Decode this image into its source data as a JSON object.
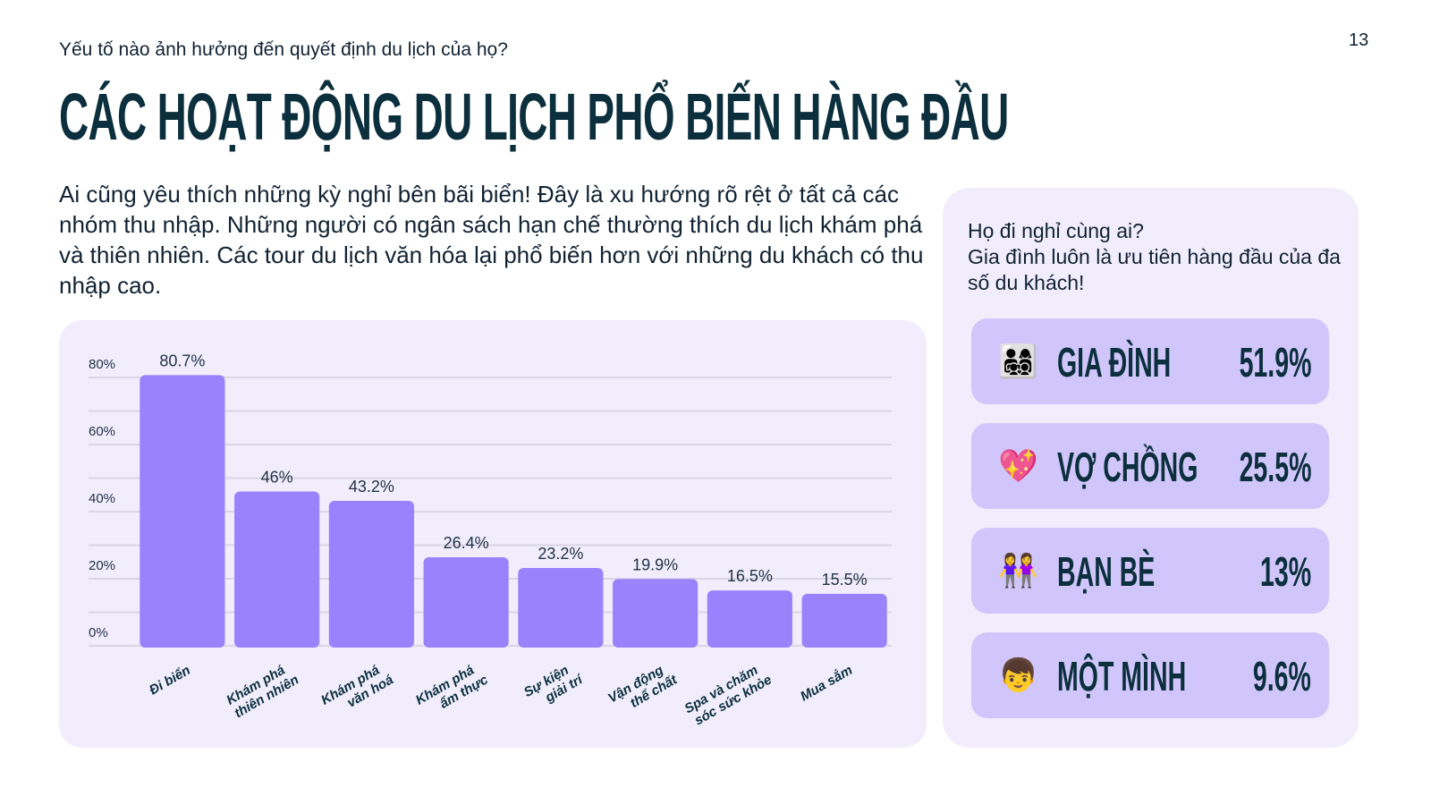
{
  "page_number": "13",
  "kicker": "Yếu tố nào ảnh hưởng đến quyết định du lịch của họ?",
  "title": "CÁC HOẠT ĐỘNG DU LỊCH PHỔ BIẾN HÀNG ĐẦU",
  "intro": "Ai cũng yêu thích những kỳ nghỉ bên bãi biển! Đây là xu hướng rõ rệt ở tất cả các nhóm thu nhập. Những người có ngân sách hạn chế thường thích du lịch khám phá và thiên nhiên. Các tour du lịch văn hóa lại phổ biến hơn với những du khách có thu nhập cao.",
  "chart_data": {
    "type": "bar",
    "categories": [
      "Đi biển",
      "Khám phá\nthiên nhiên",
      "Khám phá\nvăn hoá",
      "Khám phá\nẩm thực",
      "Sự kiện\ngiải trí",
      "Vận động\nthể chất",
      "Spa và chăm\nsóc sức khỏe",
      "Mua sắm"
    ],
    "values": [
      80.7,
      46,
      43.2,
      26.4,
      23.2,
      19.9,
      16.5,
      15.5
    ],
    "data_labels": [
      "80.7%",
      "46%",
      "43.2%",
      "26.4%",
      "23.2%",
      "19.9%",
      "16.5%",
      "15.5%"
    ],
    "yticks": [
      "0%",
      "20%",
      "40%",
      "60%",
      "80%"
    ],
    "ylim": [
      0,
      80
    ],
    "grid": true,
    "bar_color": "#9983fc"
  },
  "side": {
    "question": "Họ đi nghỉ cùng ai?\nGia đình luôn là ưu tiên hàng đầu của đa số du khách!",
    "items": [
      {
        "icon": "family-icon",
        "emoji": "👨‍👩‍👧‍👦",
        "label": "GIA ĐÌNH",
        "value": "51.9%"
      },
      {
        "icon": "sparkling-heart-icon",
        "emoji": "💖",
        "label": "VỢ CHỒNG",
        "value": "25.5%"
      },
      {
        "icon": "two-women-holding-hands-icon",
        "emoji": "👭",
        "label": "BẠN BÈ",
        "value": "13%"
      },
      {
        "icon": "boy-icon",
        "emoji": "👦",
        "label": "MỘT MÌNH",
        "value": "9.6%"
      }
    ]
  }
}
